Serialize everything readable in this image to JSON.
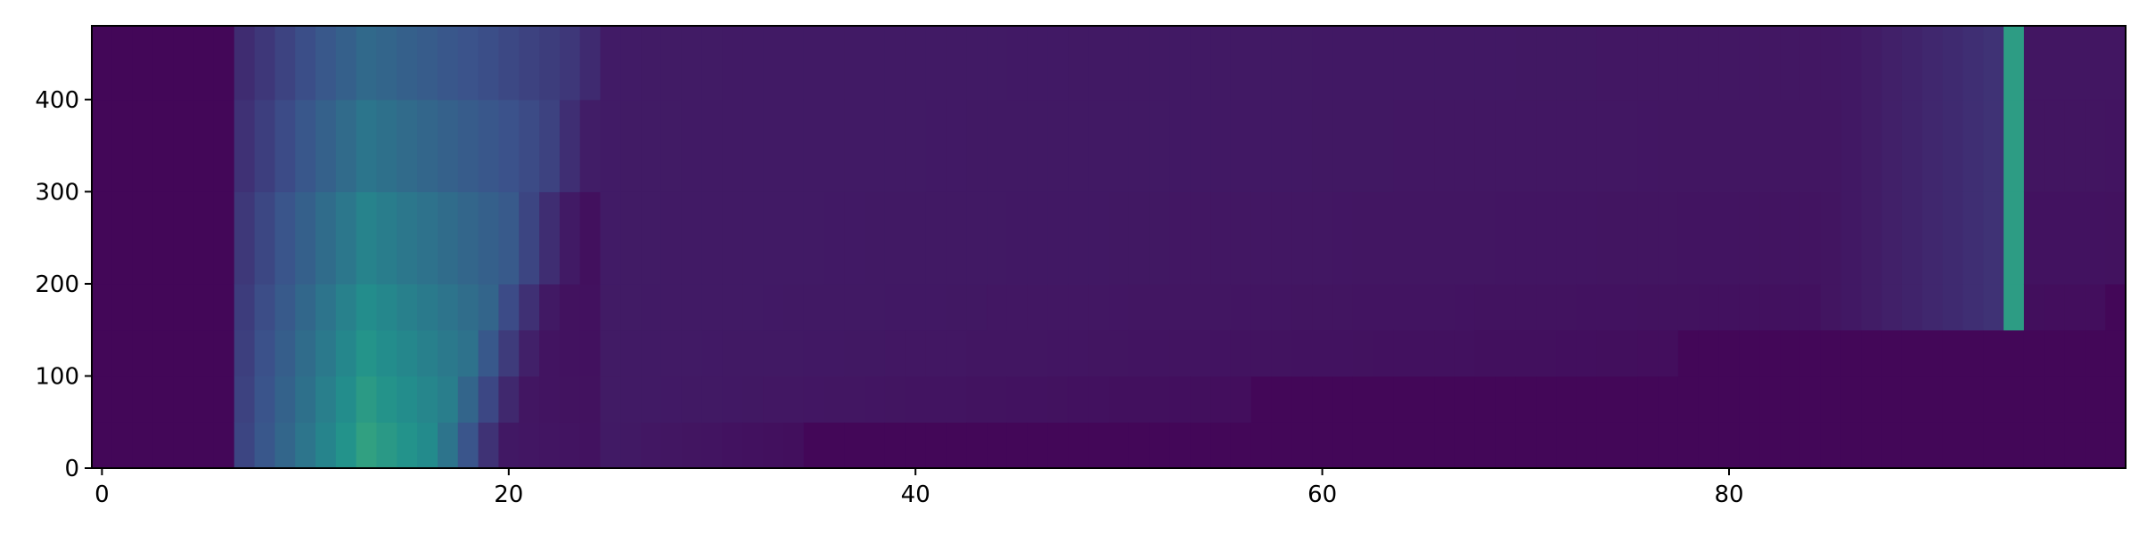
{
  "chart_data": {
    "type": "heatmap",
    "title": "",
    "xlabel": "",
    "ylabel": "",
    "xlim": [
      -0.5,
      99.5
    ],
    "ylim": [
      0,
      480
    ],
    "x_ticks": [
      0,
      20,
      40,
      60,
      80
    ],
    "y_ticks": [
      0,
      100,
      200,
      300,
      400
    ],
    "x_tick_labels": [
      "0",
      "20",
      "40",
      "60",
      "80"
    ],
    "y_tick_labels": [
      "0",
      "100",
      "200",
      "300",
      "400"
    ],
    "origin": "lower",
    "colormap": "viridis",
    "grid": false,
    "value_range": [
      0,
      1
    ],
    "y_sample_levels": [
      0,
      50,
      100,
      150,
      200,
      300,
      400,
      480
    ],
    "features": [
      {
        "kind": "band",
        "x_start": 7,
        "x_peak": 13,
        "x_end": 24,
        "value_at_y0": 0.58,
        "value_at_y480": 0.32
      },
      {
        "kind": "column",
        "x": 94,
        "y_from": 160,
        "value": 0.55
      }
    ],
    "background_value": 0.02
  }
}
